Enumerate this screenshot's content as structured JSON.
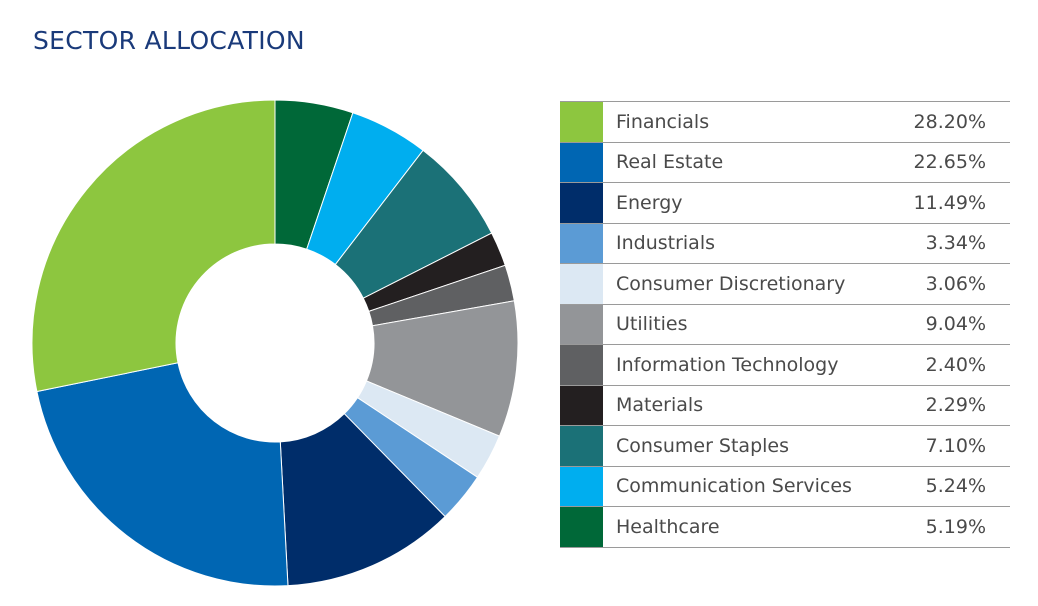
{
  "chart_data": {
    "type": "pie",
    "title": "SECTOR ALLOCATION",
    "order_clockwise_from_top": [
      "Healthcare",
      "Communication Services",
      "Consumer Staples",
      "Materials",
      "Information Technology",
      "Utilities",
      "Consumer Discretionary",
      "Industrials",
      "Energy",
      "Real Estate",
      "Financials"
    ],
    "legend": [
      {
        "label": "Financials",
        "value": 28.2,
        "display": "28.20%",
        "color": "#8dc63f"
      },
      {
        "label": "Real Estate",
        "value": 22.65,
        "display": "22.65%",
        "color": "#0066b3"
      },
      {
        "label": "Energy",
        "value": 11.49,
        "display": "11.49%",
        "color": "#002d6a"
      },
      {
        "label": "Industrials",
        "value": 3.34,
        "display": "3.34%",
        "color": "#5b9bd5"
      },
      {
        "label": "Consumer Discretionary",
        "value": 3.06,
        "display": "3.06%",
        "color": "#dce8f3"
      },
      {
        "label": "Utilities",
        "value": 9.04,
        "display": "9.04%",
        "color": "#939598"
      },
      {
        "label": "Information Technology",
        "value": 2.4,
        "display": "2.40%",
        "color": "#5f6062"
      },
      {
        "label": "Materials",
        "value": 2.29,
        "display": "2.29%",
        "color": "#231f20"
      },
      {
        "label": "Consumer Staples",
        "value": 7.1,
        "display": "7.10%",
        "color": "#1b7177"
      },
      {
        "label": "Communication Services",
        "value": 5.24,
        "display": "5.24%",
        "color": "#00aeef"
      },
      {
        "label": "Healthcare",
        "value": 5.19,
        "display": "5.19%",
        "color": "#006838"
      }
    ]
  }
}
